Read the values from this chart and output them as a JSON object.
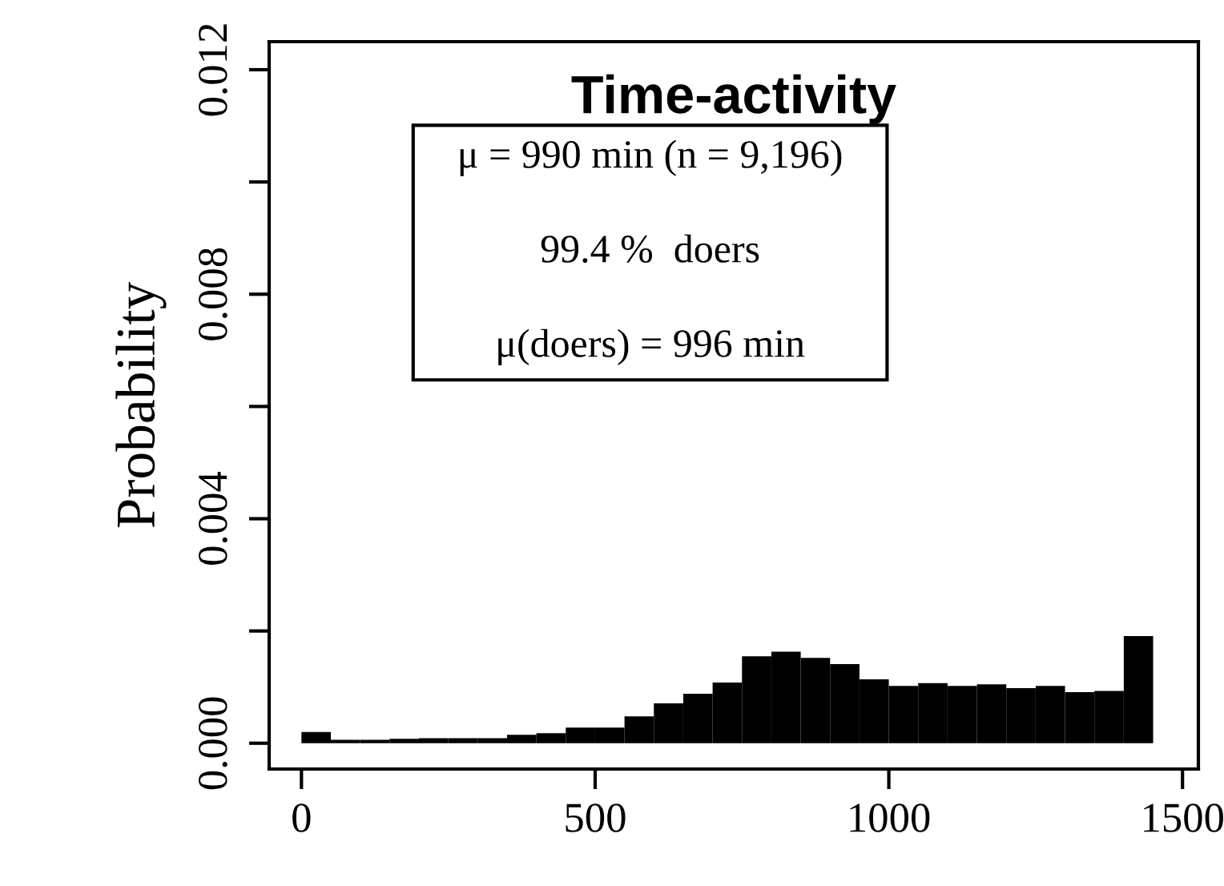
{
  "chart_data": {
    "type": "histogram",
    "title": "Time-activity",
    "ylabel": "Probability",
    "bins": [
      0,
      50,
      100,
      150,
      200,
      250,
      300,
      350,
      400,
      450,
      500,
      550,
      600,
      650,
      700,
      750,
      800,
      850,
      900,
      950,
      1000,
      1050,
      1100,
      1150,
      1200,
      1250,
      1300,
      1350,
      1400,
      1450
    ],
    "values": [
      0.0002,
      6e-05,
      6e-05,
      8e-05,
      9e-05,
      9e-05,
      9e-05,
      0.00015,
      0.00018,
      0.00028,
      0.00028,
      0.00048,
      0.00071,
      0.00088,
      0.00108,
      0.00155,
      0.00163,
      0.00152,
      0.00141,
      0.00114,
      0.00102,
      0.00107,
      0.00102,
      0.00105,
      0.00098,
      0.00102,
      0.00091,
      0.00093,
      0.00191
    ],
    "color": "#000000",
    "annotations": [
      "μ = 990 min (n = 9,196)",
      "99.4 %  doers",
      "μ(doers) = 996 min"
    ],
    "xlim": [
      -55,
      1527
    ],
    "ylim": [
      -0.00046,
      0.0125
    ],
    "xticks": [
      0,
      500,
      1000,
      1500
    ],
    "yticks": [
      {
        "value": 0,
        "label": "0.000"
      },
      {
        "value": 0.002,
        "label": null
      },
      {
        "value": 0.004,
        "label": "0.004"
      },
      {
        "value": 0.006,
        "label": null
      },
      {
        "value": 0.008,
        "label": "0.008"
      },
      {
        "value": 0.01,
        "label": null
      },
      {
        "value": 0.012,
        "label": "0.012"
      }
    ],
    "grid": false,
    "legend": false
  }
}
